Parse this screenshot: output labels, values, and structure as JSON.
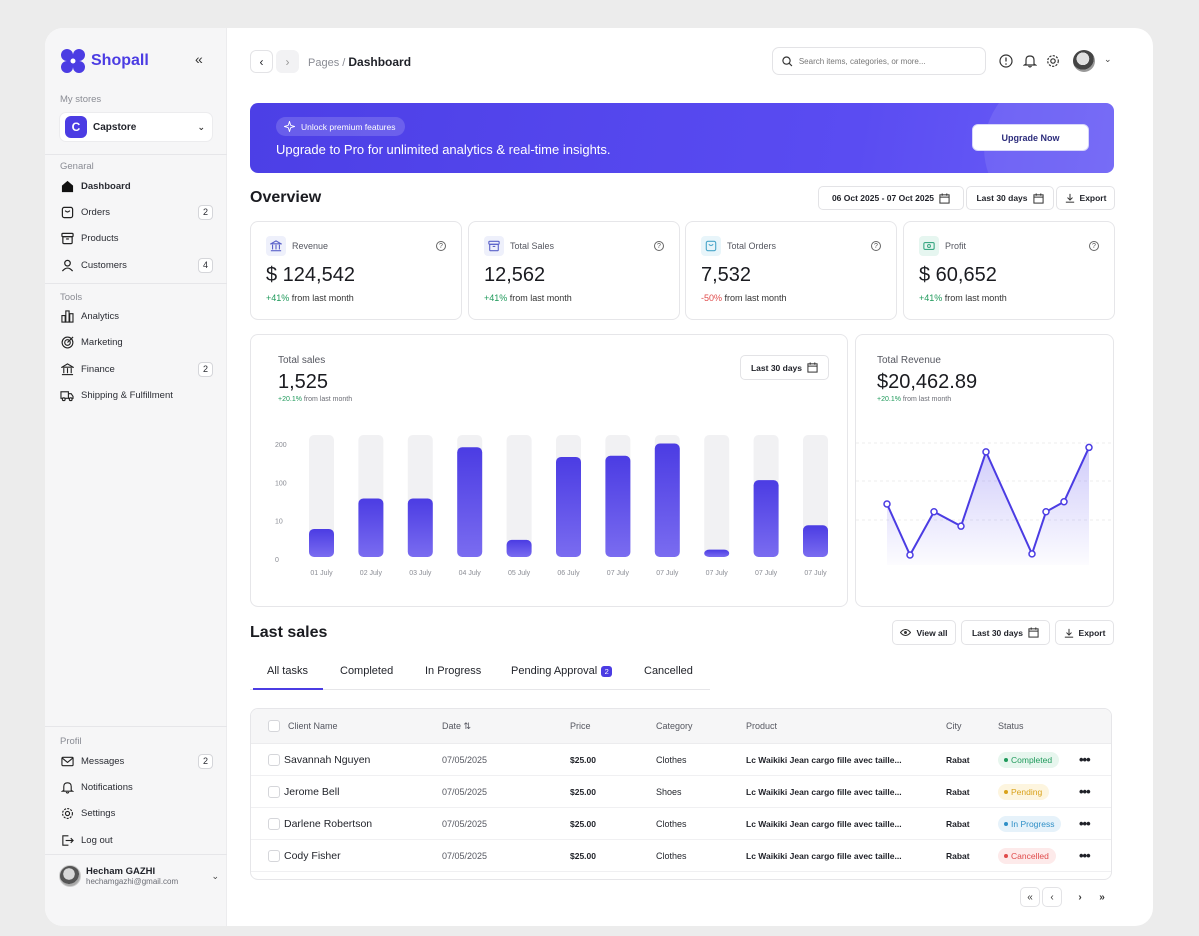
{
  "app": {
    "name": "Shopall"
  },
  "sidebar": {
    "stores_label": "My stores",
    "store": {
      "initial": "C",
      "name": "Capstore"
    },
    "general_label": "Genaral",
    "general": [
      {
        "label": "Dashboard",
        "icon": "home-icon",
        "badge": ""
      },
      {
        "label": "Orders",
        "icon": "bag-icon",
        "badge": "2"
      },
      {
        "label": "Products",
        "icon": "archive-icon",
        "badge": ""
      },
      {
        "label": "Customers",
        "icon": "user-icon",
        "badge": "4"
      }
    ],
    "tools_label": "Tools",
    "tools": [
      {
        "label": "Analytics",
        "icon": "bar-chart-icon",
        "badge": ""
      },
      {
        "label": "Marketing",
        "icon": "target-icon",
        "badge": ""
      },
      {
        "label": "Finance",
        "icon": "bank-icon",
        "badge": "2"
      },
      {
        "label": "Shipping & Fulfillment",
        "icon": "truck-icon",
        "badge": ""
      }
    ],
    "profile_label": "Profil",
    "profile": [
      {
        "label": "Messages",
        "icon": "mail-icon",
        "badge": "2"
      },
      {
        "label": "Notifications",
        "icon": "bell-icon",
        "badge": ""
      },
      {
        "label": "Settings",
        "icon": "gear-icon",
        "badge": ""
      },
      {
        "label": "Log out",
        "icon": "logout-icon",
        "badge": ""
      }
    ],
    "user": {
      "name": "Hecham GAZHI",
      "email": "hechamgazhi@gmail.com"
    }
  },
  "header": {
    "breadcrumb_parent": "Pages /",
    "breadcrumb_current": "Dashboard",
    "search_placeholder": "Search items, categories, or more..."
  },
  "banner": {
    "pill": "Unlock premium features",
    "title": "Upgrade to Pro for unlimited analytics & real-time insights.",
    "button": "Upgrade Now"
  },
  "overview": {
    "title": "Overview",
    "date_range": "06 Oct 2025 - 07 Oct 2025",
    "period": "Last 30 days",
    "export": "Export",
    "kpis": [
      {
        "label": "Revenue",
        "value": "$ 124,542",
        "delta": "+41%",
        "delta_text": " from last month",
        "trend": "up",
        "color": "#5b62c9",
        "bg": "#eef0fb"
      },
      {
        "label": "Total Sales",
        "value": "12,562",
        "delta": "+41%",
        "delta_text": " from last month",
        "trend": "up",
        "color": "#5b62c9",
        "bg": "#eef0fb"
      },
      {
        "label": "Total Orders",
        "value": "7,532",
        "delta": "-50%",
        "delta_text": " from last month",
        "trend": "down",
        "color": "#4aa6c9",
        "bg": "#e8f5fa"
      },
      {
        "label": "Profit",
        "value": "$ 60,652",
        "delta": "+41%",
        "delta_text": " from last month",
        "trend": "up",
        "color": "#3aa883",
        "bg": "#e6f6f0"
      }
    ]
  },
  "sales_chart": {
    "title": "Total sales",
    "value": "1,525",
    "delta": "+20.1%",
    "delta_text": " from last month",
    "period": "Last 30 days"
  },
  "revenue_chart": {
    "title": "Total Revenue",
    "value": "$20,462.89",
    "delta": "+20.1%",
    "delta_text": " from last month"
  },
  "chart_data": [
    {
      "type": "bar",
      "y_ticks": [
        "200",
        "100",
        "10",
        "0"
      ],
      "categories": [
        "01 July",
        "02 July",
        "03 July",
        "04 July",
        "05 July",
        "06 July",
        "07 July",
        "07 July",
        "07 July",
        "07 July",
        "07 July"
      ],
      "values": [
        0.23,
        0.48,
        0.48,
        0.9,
        0.14,
        0.82,
        0.83,
        0.93,
        0.06,
        0.63,
        0.26
      ],
      "max_value": 1,
      "color": "#4b3ce3"
    },
    {
      "type": "area",
      "values": [
        0.55,
        0.09,
        0.48,
        0.35,
        1.02,
        0.1,
        0.48,
        0.57,
        1.06
      ],
      "max_value": 1.1,
      "color": "#4b3ce3"
    }
  ],
  "last_sales": {
    "title": "Last sales",
    "view_all": "View all",
    "period": "Last 30 days",
    "export": "Export",
    "tabs": [
      {
        "label": "All tasks",
        "badge": ""
      },
      {
        "label": "Completed",
        "badge": ""
      },
      {
        "label": "In Progress",
        "badge": ""
      },
      {
        "label": "Pending Approval",
        "badge": "2"
      },
      {
        "label": "Cancelled",
        "badge": ""
      }
    ],
    "columns": [
      "Client Name",
      "Date ⇅",
      "Price",
      "Category",
      "Product",
      "City",
      "Status"
    ],
    "rows": [
      {
        "name": "Savannah Nguyen",
        "date": "07/05/2025",
        "price": "$25.00",
        "category": "Clothes",
        "product": "Lc Waikiki Jean cargo fille avec taille...",
        "city": "Rabat",
        "status": "Completed",
        "status_color": "#1f9a5b",
        "status_bg": "#e7f6ee"
      },
      {
        "name": "Jerome Bell",
        "date": "07/05/2025",
        "price": "$25.00",
        "category": "Shoes",
        "product": "Lc Waikiki Jean cargo fille avec taille...",
        "city": "Rabat",
        "status": "Pending",
        "status_color": "#d9a21b",
        "status_bg": "#fdf5df"
      },
      {
        "name": "Darlene Robertson",
        "date": "07/05/2025",
        "price": "$25.00",
        "category": "Clothes",
        "product": "Lc Waikiki Jean cargo fille avec taille...",
        "city": "Rabat",
        "status": "In Progress",
        "status_color": "#2f8fc7",
        "status_bg": "#e6f2fa"
      },
      {
        "name": "Cody Fisher",
        "date": "07/05/2025",
        "price": "$25.00",
        "category": "Clothes",
        "product": "Lc Waikiki Jean cargo fille avec taille...",
        "city": "Rabat",
        "status": "Cancelled",
        "status_color": "#e04b4b",
        "status_bg": "#fdeaea"
      }
    ]
  },
  "pagination": {
    "first": "«",
    "prev": "‹",
    "next": "›",
    "last": "»"
  }
}
